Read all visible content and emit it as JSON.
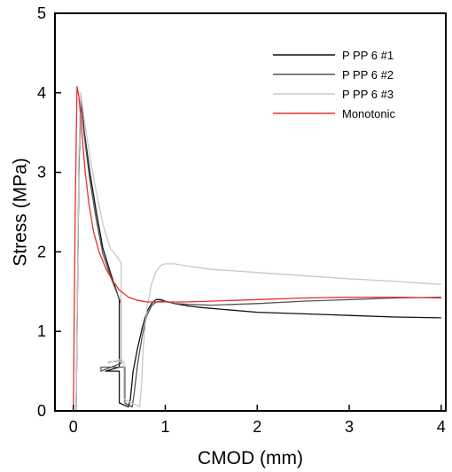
{
  "chart_data": {
    "type": "line",
    "xlabel": "CMOD (mm)",
    "ylabel": "Stress (MPa)",
    "xlim": [
      -0.2,
      4.05
    ],
    "ylim": [
      0,
      5
    ],
    "xticks": [
      0,
      1,
      2,
      3,
      4
    ],
    "xtick_labels": [
      "0",
      "1",
      "2",
      "3",
      "4"
    ],
    "yticks": [
      0,
      1,
      2,
      3,
      4,
      5
    ],
    "ytick_labels": [
      "0",
      "1",
      "2",
      "3",
      "4",
      "5"
    ],
    "grid": false,
    "legend_position": "top-right",
    "series": [
      {
        "name": "P PP 6 #1",
        "color": "#111111",
        "x": [
          0.03,
          0.06,
          0.08,
          0.12,
          0.18,
          0.25,
          0.32,
          0.4,
          0.5,
          0.5,
          0.35,
          0.35,
          0.5,
          0.5,
          0.6,
          0.62,
          0.65,
          0.7,
          0.75,
          0.8,
          0.85,
          0.9,
          0.95,
          1.0,
          1.1,
          1.25,
          1.4,
          1.6,
          2.0,
          2.5,
          3.0,
          3.5,
          4.0
        ],
        "y": [
          0,
          3.0,
          3.95,
          3.5,
          3.0,
          2.5,
          2.05,
          1.75,
          1.4,
          0.55,
          0.5,
          0.5,
          0.5,
          0.1,
          0.05,
          0.15,
          0.5,
          0.8,
          1.05,
          1.25,
          1.35,
          1.4,
          1.4,
          1.38,
          1.35,
          1.32,
          1.3,
          1.28,
          1.24,
          1.22,
          1.2,
          1.18,
          1.17
        ]
      },
      {
        "name": "P PP 6 #2",
        "color": "#555555",
        "x": [
          0.03,
          0.06,
          0.08,
          0.12,
          0.18,
          0.25,
          0.32,
          0.4,
          0.52,
          0.52,
          0.3,
          0.3,
          0.56,
          0.56,
          0.64,
          0.66,
          0.7,
          0.75,
          0.8,
          0.85,
          0.9,
          0.95,
          1.0,
          1.1,
          1.25,
          1.5,
          2.0,
          2.5,
          3.0,
          3.5,
          4.0
        ],
        "y": [
          0,
          3.1,
          3.9,
          3.45,
          2.9,
          2.4,
          1.98,
          1.7,
          1.35,
          0.6,
          0.5,
          0.55,
          0.55,
          0.1,
          0.05,
          0.2,
          0.6,
          0.95,
          1.2,
          1.32,
          1.37,
          1.38,
          1.38,
          1.35,
          1.34,
          1.33,
          1.35,
          1.38,
          1.4,
          1.42,
          1.43
        ]
      },
      {
        "name": "P PP 6 #3",
        "color": "#c8c8c8",
        "x": [
          0.03,
          0.06,
          0.08,
          0.12,
          0.18,
          0.25,
          0.32,
          0.4,
          0.5,
          0.52,
          0.52,
          0.38,
          0.38,
          0.55,
          0.55,
          0.72,
          0.74,
          0.76,
          0.8,
          0.85,
          0.9,
          0.95,
          1.0,
          1.1,
          1.25,
          1.5,
          2.0,
          2.5,
          3.0,
          3.5,
          4.0
        ],
        "y": [
          0,
          3.2,
          4.0,
          3.65,
          3.2,
          2.75,
          2.35,
          2.05,
          1.9,
          1.85,
          0.65,
          0.6,
          0.62,
          0.62,
          0.15,
          0.05,
          0.3,
          0.8,
          1.3,
          1.6,
          1.75,
          1.83,
          1.85,
          1.85,
          1.82,
          1.78,
          1.74,
          1.7,
          1.66,
          1.63,
          1.59
        ]
      },
      {
        "name": "Monotonic",
        "color": "#e8302a",
        "x": [
          0,
          0.02,
          0.04,
          0.06,
          0.08,
          0.1,
          0.13,
          0.17,
          0.22,
          0.28,
          0.35,
          0.42,
          0.5,
          0.6,
          0.7,
          0.8,
          0.9,
          1.0,
          1.2,
          1.5,
          2.0,
          2.5,
          3.0,
          3.5,
          4.0
        ],
        "y": [
          0,
          2.5,
          4.08,
          3.95,
          3.7,
          3.4,
          3.0,
          2.6,
          2.25,
          2.0,
          1.8,
          1.65,
          1.52,
          1.43,
          1.39,
          1.37,
          1.37,
          1.37,
          1.37,
          1.38,
          1.4,
          1.42,
          1.43,
          1.43,
          1.42
        ]
      }
    ]
  }
}
